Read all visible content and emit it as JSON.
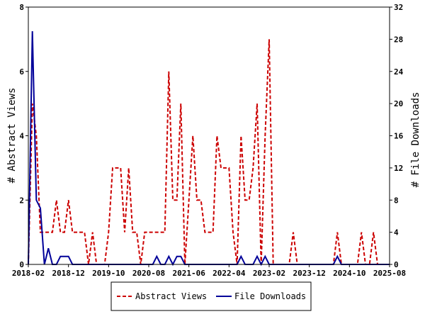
{
  "chart_data": {
    "type": "line",
    "xlabel": "",
    "ylabel": "# Abstract Views",
    "y2label": "# File Downloads",
    "ylim": [
      0,
      8
    ],
    "y2lim": [
      0,
      32
    ],
    "yticks": [
      "0",
      "2",
      "4",
      "6",
      "8"
    ],
    "y2ticks": [
      "0",
      "4",
      "8",
      "12",
      "16",
      "20",
      "24",
      "28",
      "32"
    ],
    "xticks": [
      "2018-02",
      "2018-12",
      "2019-10",
      "2020-08",
      "2021-06",
      "2022-04",
      "2023-02",
      "2023-12",
      "2024-10",
      "2025-08"
    ],
    "x_range": [
      "2018-02",
      "2025-08"
    ],
    "legend": {
      "position": "bottom"
    },
    "series": [
      {
        "name": "Abstract Views",
        "color": "#cc0000",
        "style": "dashed",
        "axis": "left",
        "points": [
          [
            "2018-02",
            0
          ],
          [
            "2018-03",
            5
          ],
          [
            "2018-04",
            4
          ],
          [
            "2018-05",
            1
          ],
          [
            "2018-06",
            1
          ],
          [
            "2018-07",
            1
          ],
          [
            "2018-08",
            1
          ],
          [
            "2018-09",
            2
          ],
          [
            "2018-10",
            1
          ],
          [
            "2018-11",
            1
          ],
          [
            "2018-12",
            2
          ],
          [
            "2019-01",
            1
          ],
          [
            "2019-02",
            1
          ],
          [
            "2019-03",
            1
          ],
          [
            "2019-04",
            1
          ],
          [
            "2019-05",
            0
          ],
          [
            "2019-06",
            1
          ],
          [
            "2019-07",
            0
          ],
          [
            "2019-08",
            0
          ],
          [
            "2019-09",
            0
          ],
          [
            "2019-10",
            1
          ],
          [
            "2019-11",
            3
          ],
          [
            "2019-12",
            3
          ],
          [
            "2020-01",
            3
          ],
          [
            "2020-02",
            1
          ],
          [
            "2020-03",
            3
          ],
          [
            "2020-04",
            1
          ],
          [
            "2020-05",
            1
          ],
          [
            "2020-06",
            0
          ],
          [
            "2020-07",
            1
          ],
          [
            "2020-08",
            1
          ],
          [
            "2020-09",
            1
          ],
          [
            "2020-10",
            1
          ],
          [
            "2020-11",
            1
          ],
          [
            "2020-12",
            1
          ],
          [
            "2021-01",
            6
          ],
          [
            "2021-02",
            2
          ],
          [
            "2021-03",
            2
          ],
          [
            "2021-04",
            5
          ],
          [
            "2021-05",
            0
          ],
          [
            "2021-06",
            2
          ],
          [
            "2021-07",
            4
          ],
          [
            "2021-08",
            2
          ],
          [
            "2021-09",
            2
          ],
          [
            "2021-10",
            1
          ],
          [
            "2021-11",
            1
          ],
          [
            "2021-12",
            1
          ],
          [
            "2022-01",
            4
          ],
          [
            "2022-02",
            3
          ],
          [
            "2022-03",
            3
          ],
          [
            "2022-04",
            3
          ],
          [
            "2022-05",
            1
          ],
          [
            "2022-06",
            0
          ],
          [
            "2022-07",
            4
          ],
          [
            "2022-08",
            2
          ],
          [
            "2022-09",
            2
          ],
          [
            "2022-10",
            3
          ],
          [
            "2022-11",
            5
          ],
          [
            "2022-12",
            0
          ],
          [
            "2023-01",
            4
          ],
          [
            "2023-02",
            7
          ],
          [
            "2023-03",
            0
          ],
          [
            "2023-04",
            0
          ],
          [
            "2023-05",
            0
          ],
          [
            "2023-06",
            0
          ],
          [
            "2023-07",
            0
          ],
          [
            "2023-08",
            1
          ],
          [
            "2023-09",
            0
          ],
          [
            "2023-10",
            0
          ],
          [
            "2023-11",
            0
          ],
          [
            "2023-12",
            0
          ],
          [
            "2024-01",
            0
          ],
          [
            "2024-02",
            0
          ],
          [
            "2024-03",
            0
          ],
          [
            "2024-04",
            0
          ],
          [
            "2024-05",
            0
          ],
          [
            "2024-06",
            0
          ],
          [
            "2024-07",
            1
          ],
          [
            "2024-08",
            0
          ],
          [
            "2024-09",
            0
          ],
          [
            "2024-10",
            0
          ],
          [
            "2024-11",
            0
          ],
          [
            "2024-12",
            0
          ],
          [
            "2025-01",
            1
          ],
          [
            "2025-02",
            0
          ],
          [
            "2025-03",
            0
          ],
          [
            "2025-04",
            1
          ],
          [
            "2025-05",
            0
          ],
          [
            "2025-06",
            0
          ],
          [
            "2025-07",
            0
          ],
          [
            "2025-08",
            0
          ]
        ]
      },
      {
        "name": "File Downloads",
        "color": "#000099",
        "style": "solid",
        "axis": "right",
        "points": [
          [
            "2018-02",
            0
          ],
          [
            "2018-03",
            29
          ],
          [
            "2018-04",
            8
          ],
          [
            "2018-05",
            7
          ],
          [
            "2018-06",
            0
          ],
          [
            "2018-07",
            2
          ],
          [
            "2018-08",
            0
          ],
          [
            "2018-09",
            0
          ],
          [
            "2018-10",
            1
          ],
          [
            "2018-11",
            1
          ],
          [
            "2018-12",
            1
          ],
          [
            "2019-01",
            0
          ],
          [
            "2019-02",
            0
          ],
          [
            "2019-03",
            0
          ],
          [
            "2019-04",
            0
          ],
          [
            "2019-05",
            0
          ],
          [
            "2019-06",
            0
          ],
          [
            "2019-07",
            0
          ],
          [
            "2019-08",
            0
          ],
          [
            "2019-09",
            0
          ],
          [
            "2019-10",
            0
          ],
          [
            "2019-11",
            0
          ],
          [
            "2019-12",
            0
          ],
          [
            "2020-01",
            0
          ],
          [
            "2020-02",
            0
          ],
          [
            "2020-03",
            0
          ],
          [
            "2020-04",
            0
          ],
          [
            "2020-05",
            0
          ],
          [
            "2020-06",
            0
          ],
          [
            "2020-07",
            0
          ],
          [
            "2020-08",
            0
          ],
          [
            "2020-09",
            0
          ],
          [
            "2020-10",
            1
          ],
          [
            "2020-11",
            0
          ],
          [
            "2020-12",
            0
          ],
          [
            "2021-01",
            1
          ],
          [
            "2021-02",
            0
          ],
          [
            "2021-03",
            1
          ],
          [
            "2021-04",
            1
          ],
          [
            "2021-05",
            0
          ],
          [
            "2021-06",
            0
          ],
          [
            "2021-07",
            0
          ],
          [
            "2021-08",
            0
          ],
          [
            "2021-09",
            0
          ],
          [
            "2021-10",
            0
          ],
          [
            "2021-11",
            0
          ],
          [
            "2021-12",
            0
          ],
          [
            "2022-01",
            0
          ],
          [
            "2022-02",
            0
          ],
          [
            "2022-03",
            0
          ],
          [
            "2022-04",
            0
          ],
          [
            "2022-05",
            0
          ],
          [
            "2022-06",
            0
          ],
          [
            "2022-07",
            1
          ],
          [
            "2022-08",
            0
          ],
          [
            "2022-09",
            0
          ],
          [
            "2022-10",
            0
          ],
          [
            "2022-11",
            1
          ],
          [
            "2022-12",
            0
          ],
          [
            "2023-01",
            1
          ],
          [
            "2023-02",
            0
          ],
          [
            "2023-03",
            0
          ],
          [
            "2023-04",
            0
          ],
          [
            "2023-05",
            0
          ],
          [
            "2023-06",
            0
          ],
          [
            "2023-07",
            0
          ],
          [
            "2023-08",
            0
          ],
          [
            "2023-09",
            0
          ],
          [
            "2023-10",
            0
          ],
          [
            "2023-11",
            0
          ],
          [
            "2023-12",
            0
          ],
          [
            "2024-01",
            0
          ],
          [
            "2024-02",
            0
          ],
          [
            "2024-03",
            0
          ],
          [
            "2024-04",
            0
          ],
          [
            "2024-05",
            0
          ],
          [
            "2024-06",
            0
          ],
          [
            "2024-07",
            1
          ],
          [
            "2024-08",
            0
          ],
          [
            "2024-09",
            0
          ],
          [
            "2024-10",
            0
          ],
          [
            "2024-11",
            0
          ],
          [
            "2024-12",
            0
          ],
          [
            "2025-01",
            0
          ],
          [
            "2025-02",
            0
          ],
          [
            "2025-03",
            0
          ],
          [
            "2025-04",
            0
          ],
          [
            "2025-05",
            0
          ],
          [
            "2025-06",
            0
          ],
          [
            "2025-07",
            0
          ],
          [
            "2025-08",
            0
          ]
        ]
      }
    ]
  }
}
